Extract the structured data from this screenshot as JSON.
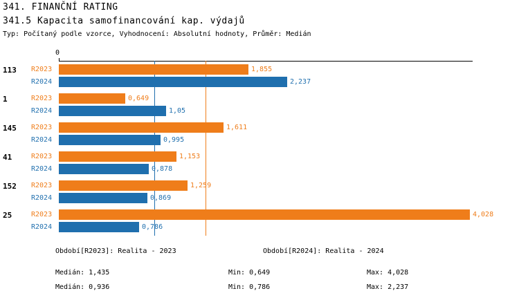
{
  "header": {
    "title": "341. FINANČNÍ RATING",
    "subtitle": "341.5 Kapacita samofinancování kap. výdajů",
    "meta": "Typ: Počítaný podle vzorce, Vyhodnocení: Absolutní hodnoty, Průměr: Medián"
  },
  "colors": {
    "r2023": "#ef7d1a",
    "r2024": "#1f6fae",
    "axis": "#000000"
  },
  "chart_data": {
    "type": "bar",
    "orientation": "horizontal",
    "title": "341.5 Kapacita samofinancování kap. výdajů",
    "zero_label": "0",
    "xlim": [
      0,
      4.028
    ],
    "grid": false,
    "categories": [
      "113",
      "1",
      "145",
      "41",
      "152",
      "25"
    ],
    "series": [
      {
        "name": "R2023",
        "color": "#ef7d1a",
        "values": [
          1.855,
          0.649,
          1.611,
          1.153,
          1.259,
          4.028
        ],
        "labels": [
          "1,855",
          "0,649",
          "1,611",
          "1,153",
          "1,259",
          "4,028"
        ]
      },
      {
        "name": "R2024",
        "color": "#1f6fae",
        "values": [
          2.237,
          1.05,
          0.995,
          0.878,
          0.869,
          0.786
        ],
        "labels": [
          "2,237",
          "1,05",
          "0,995",
          "0,878",
          "0,869",
          "0,786"
        ]
      }
    ],
    "median_lines": [
      {
        "series": "R2024",
        "value": 0.936,
        "color": "#1f6fae"
      },
      {
        "series": "R2023",
        "value": 1.435,
        "color": "#ef7d1a"
      }
    ]
  },
  "legend": {
    "r2023": "Období[R2023]: Realita - 2023",
    "r2024": "Období[R2024]: Realita - 2024"
  },
  "stats": {
    "r2023": {
      "median": "Medián: 1,435",
      "min": "Min: 0,649",
      "max": "Max: 4,028"
    },
    "r2024": {
      "median": "Medián: 0,936",
      "min": "Min: 0,786",
      "max": "Max: 2,237"
    }
  }
}
